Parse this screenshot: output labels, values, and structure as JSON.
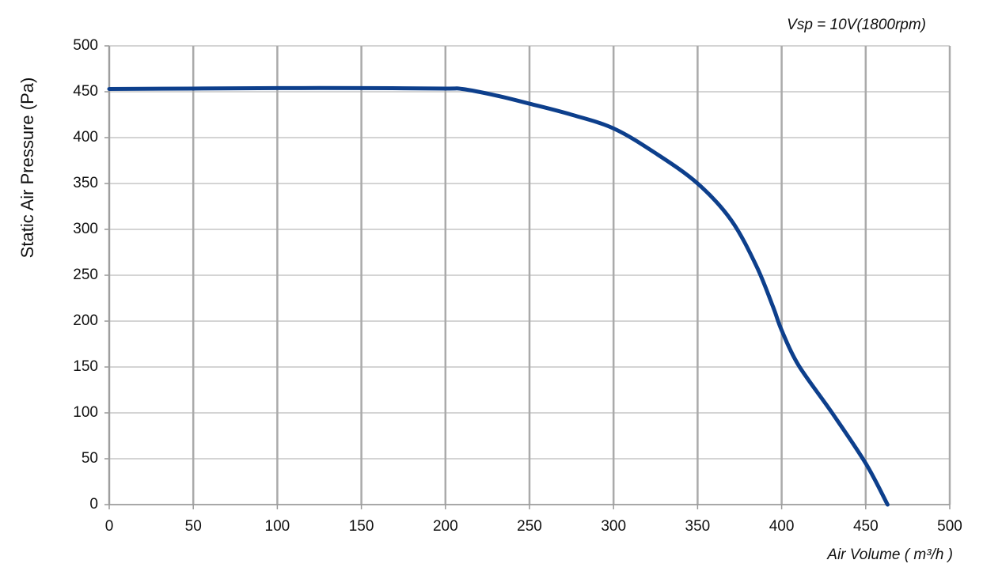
{
  "chart_data": {
    "type": "line",
    "title": "Vsp = 10V(1800rpm)",
    "x_label": "Air Volume ( m³/h )",
    "y_label": "Static Air Pressure  (Pa)",
    "series": [
      {
        "color": "#0d3f8c",
        "x": [
          0,
          50,
          100,
          150,
          200,
          210,
          230,
          250,
          275,
          300,
          325,
          350,
          370,
          385,
          395,
          400,
          410,
          430,
          450,
          463
        ],
        "values": [
          453,
          453.5,
          454,
          454,
          453.5,
          453,
          446,
          437,
          425,
          410,
          383,
          350,
          310,
          260,
          215,
          190,
          152,
          100,
          45,
          0
        ]
      }
    ],
    "xlim": [
      0,
      500
    ],
    "xticks": [
      0,
      50,
      100,
      150,
      200,
      250,
      300,
      350,
      400,
      450,
      500
    ],
    "ylim": [
      0,
      500
    ],
    "yticks": [
      0,
      50,
      100,
      150,
      200,
      250,
      300,
      350,
      400,
      450,
      500
    ],
    "grid": true
  }
}
